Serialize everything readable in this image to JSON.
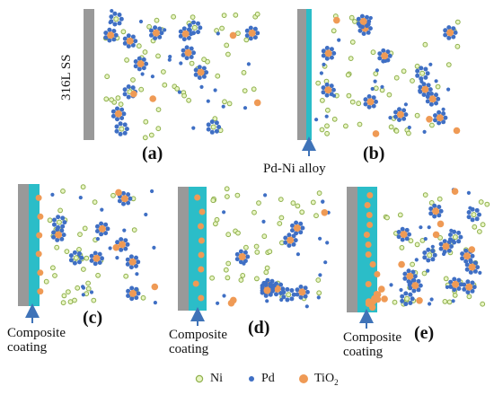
{
  "substrate_label": "316L SS",
  "alloy_label": "Pd-Ni alloy",
  "coating_label_line1": "Composite",
  "coating_label_line2": "coating",
  "panels": [
    {
      "label": "(a)"
    },
    {
      "label": "(b)"
    },
    {
      "label": "(c)"
    },
    {
      "label": "(d)"
    },
    {
      "label": "(e)"
    }
  ],
  "legend": {
    "ni": "Ni",
    "pd": "Pd",
    "tio2_main": "TiO",
    "tio2_sub": "2"
  },
  "colors": {
    "substrate": "#999999",
    "coating": "#2bbdc8",
    "ni": "#e8f5c2",
    "ni_stroke": "#8fb04e",
    "pd": "#3f6fc4",
    "tio2": "#ef9a55",
    "arrow": "#3f73b8"
  }
}
